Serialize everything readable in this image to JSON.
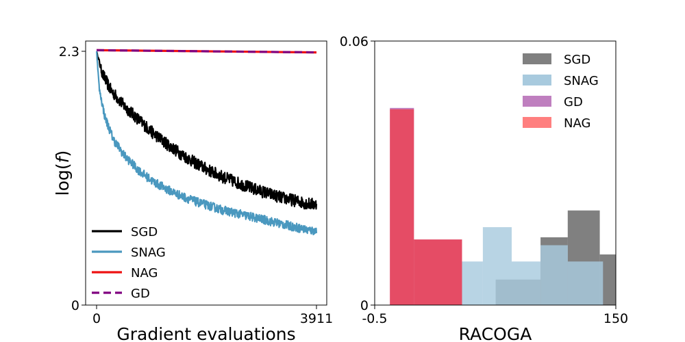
{
  "chart_data": [
    {
      "type": "line",
      "xlabel": "Gradient evaluations",
      "ylabel": "log(f)",
      "xlim": [
        0,
        3911
      ],
      "ylim": [
        0,
        2.3
      ],
      "xticks": [
        "0",
        "3911"
      ],
      "yticks": [
        "0",
        "2.3"
      ],
      "legend_position": "lower-left",
      "series": [
        {
          "name": "SGD",
          "color": "#000000",
          "style": "solid",
          "noise": 0.055,
          "x": [
            0,
            100,
            250,
            500,
            750,
            1000,
            1250,
            1500,
            1750,
            2000,
            2250,
            2500,
            2750,
            3000,
            3250,
            3500,
            3750,
            3911
          ],
          "y": [
            2.3,
            2.1,
            1.95,
            1.8,
            1.68,
            1.56,
            1.46,
            1.37,
            1.29,
            1.22,
            1.16,
            1.11,
            1.06,
            1.02,
            0.98,
            0.95,
            0.92,
            0.91
          ]
        },
        {
          "name": "SNAG",
          "color": "#4a98bf",
          "style": "solid",
          "noise": 0.04,
          "x": [
            0,
            50,
            150,
            300,
            500,
            750,
            1000,
            1250,
            1500,
            1750,
            2000,
            2250,
            2500,
            2750,
            3000,
            3250,
            3500,
            3750,
            3911
          ],
          "y": [
            2.3,
            1.95,
            1.7,
            1.5,
            1.35,
            1.22,
            1.12,
            1.05,
            0.99,
            0.94,
            0.9,
            0.86,
            0.83,
            0.8,
            0.77,
            0.74,
            0.71,
            0.68,
            0.67
          ]
        },
        {
          "name": "NAG",
          "color": "#ee1111",
          "style": "solid",
          "noise": 0,
          "x": [
            0,
            3911
          ],
          "y": [
            2.31,
            2.29
          ]
        },
        {
          "name": "GD",
          "color": "#800080",
          "style": "dashed",
          "noise": 0,
          "x": [
            0,
            3911
          ],
          "y": [
            2.31,
            2.29
          ]
        }
      ]
    },
    {
      "type": "histogram",
      "xlabel": "RACOGA",
      "xlim": [
        -0.5,
        150
      ],
      "ylim": [
        0,
        0.06
      ],
      "xticks": [
        "-0.5",
        "150"
      ],
      "yticks": [
        "0",
        "0.06"
      ],
      "legend_position": "top-right",
      "series": [
        {
          "name": "SGD",
          "color": "#808080",
          "opacity": 1,
          "bins": [
            [
              75,
              103,
              0.0058
            ],
            [
              103,
              120,
              0.0154
            ],
            [
              120,
              140,
              0.0215
            ],
            [
              140,
              160,
              0.0115
            ]
          ]
        },
        {
          "name": "SNAG",
          "color": "#a8cade",
          "opacity": 0.82,
          "bins": [
            [
              50,
              67,
              0.0099
            ],
            [
              67,
              85,
              0.0177
            ],
            [
              85,
              103,
              0.0099
            ],
            [
              103,
              120,
              0.0136
            ],
            [
              120,
              142,
              0.0099
            ]
          ]
        },
        {
          "name": "GD",
          "color": "#bf7fbf",
          "opacity": 1,
          "bins": [
            [
              9,
              24,
              0.0448
            ],
            [
              24,
              54,
              0.0149
            ]
          ]
        },
        {
          "name": "NAG",
          "color": "#ff2a2a",
          "opacity": 0.6,
          "bins": [
            [
              9,
              24,
              0.0445
            ],
            [
              24,
              54,
              0.0149
            ]
          ]
        }
      ]
    }
  ]
}
